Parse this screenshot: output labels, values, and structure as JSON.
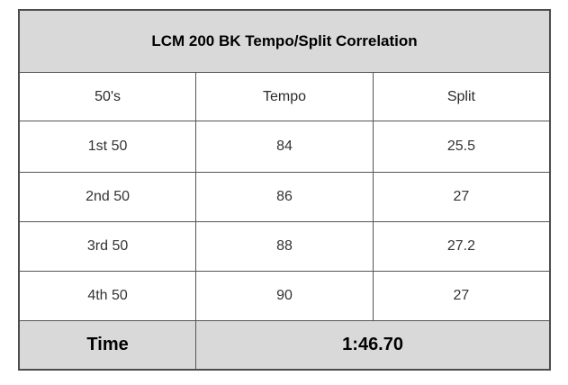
{
  "chart_data": {
    "type": "table",
    "title": "LCM 200 BK Tempo/Split Correlation",
    "columns": [
      "50's",
      "Tempo",
      "Split"
    ],
    "rows": [
      {
        "label": "1st 50",
        "tempo": "84",
        "split": "25.5"
      },
      {
        "label": "2nd 50",
        "tempo": "86",
        "split": "27"
      },
      {
        "label": "3rd 50",
        "tempo": "88",
        "split": "27.2"
      },
      {
        "label": "4th 50",
        "tempo": "90",
        "split": "27"
      }
    ],
    "footer": {
      "label": "Time",
      "value": "1:46.70"
    }
  },
  "colors": {
    "title_fill": "#d9d9d9",
    "footer_fill": "#d9d9d9",
    "cell_fill": "#ffffff",
    "border": "#555555",
    "outer_border": "#4d4d4d",
    "title_text": "#000000",
    "cell_text": "#333333"
  }
}
